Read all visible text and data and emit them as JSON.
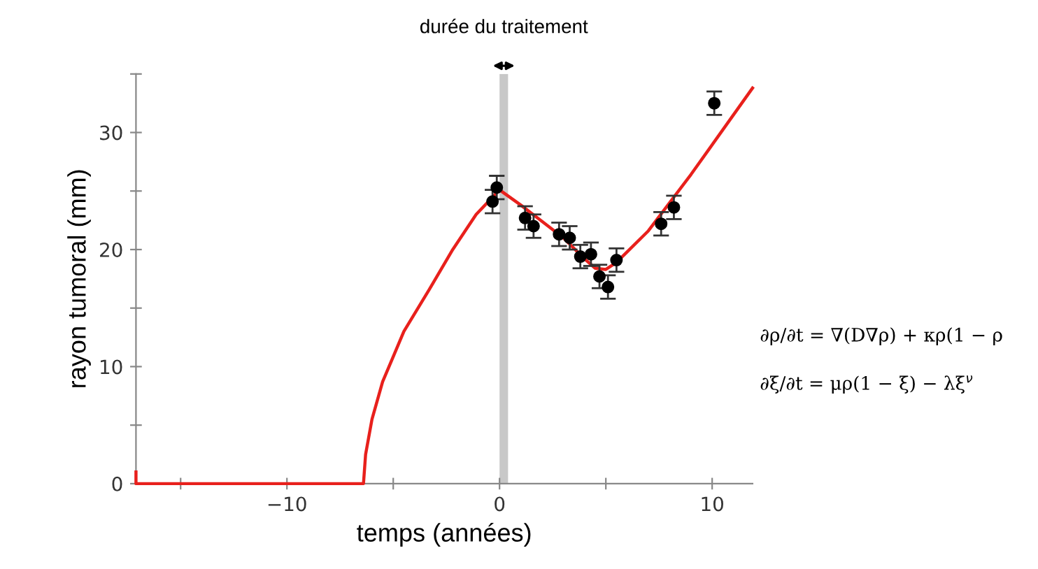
{
  "chart_data": {
    "type": "line",
    "xlabel": "temps (années)",
    "ylabel": "rayon tumoral (mm)",
    "xlim": [
      -17.1,
      11.9
    ],
    "ylim": [
      0,
      35
    ],
    "xticks": [
      {
        "value": -15,
        "label": null
      },
      {
        "value": -10,
        "label": "−10"
      },
      {
        "value": -5,
        "label": null
      },
      0,
      {
        "value": 5,
        "label": null
      },
      10
    ],
    "yticks": [
      0,
      {
        "value": 5,
        "label": null
      },
      10,
      {
        "value": 15,
        "label": null
      },
      20,
      {
        "value": 25,
        "label": null
      },
      30,
      {
        "value": 35,
        "label": null
      }
    ],
    "series": [
      {
        "color": "#e8201c",
        "x": [
          -17.1,
          -17.1,
          -16.9,
          -6.4,
          -6.3,
          -6.0,
          -5.5,
          -4.5,
          -3.3,
          -2.2,
          -1.1,
          0,
          1.0,
          2.0,
          3.0,
          4.0,
          4.5,
          5.0,
          5.5,
          7.0,
          9.0,
          11.9
        ],
        "values": [
          1,
          0,
          0,
          0,
          2.5,
          5.5,
          8.7,
          13.0,
          16.6,
          20.0,
          23.0,
          25.1,
          23.8,
          22.4,
          21.0,
          19.2,
          18.4,
          18.3,
          18.9,
          21.6,
          26.4,
          33.8
        ]
      },
      {
        "type": "scatter",
        "marker": "circle",
        "color": "#000000",
        "x": [
          -0.33,
          -0.13,
          1.2,
          1.6,
          2.8,
          3.3,
          3.8,
          4.3,
          4.7,
          5.1,
          5.5,
          7.6,
          8.2,
          10.1
        ],
        "values": [
          24.1,
          25.3,
          22.7,
          22.0,
          21.3,
          21.0,
          19.4,
          19.6,
          17.7,
          16.8,
          19.1,
          22.2,
          23.6,
          32.5
        ],
        "errors": [
          1.0,
          1.0,
          1.0,
          1.0,
          1.0,
          1.0,
          1.0,
          1.0,
          1.0,
          1.0,
          1.0,
          1.0,
          1.0,
          1.0
        ]
      }
    ],
    "bands": [
      {
        "axis": "x",
        "from": 0,
        "to": 0.4,
        "label": "durée du traitement",
        "color": "#c8c8c8"
      }
    ],
    "annotations": [
      "∂ρ/∂t = ∇(D∇ρ) + κρ(1 − ρ",
      "∂ξ/∂t = μρ(1 − ξ) − λξ$^{ν}$"
    ],
    "grid": false,
    "legend": false
  }
}
